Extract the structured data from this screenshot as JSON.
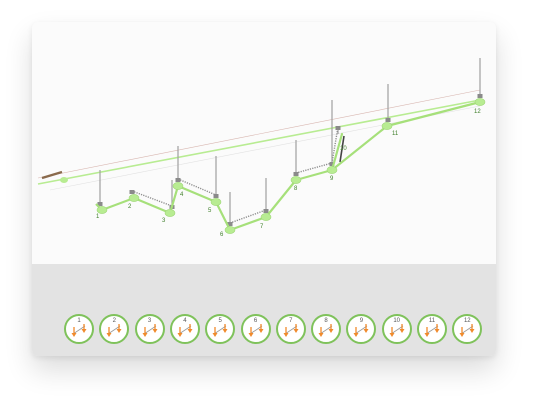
{
  "colors": {
    "line_green": "#a6e07a",
    "node_green": "#b8ec92",
    "ring_green": "#7fc25b",
    "arrow_orange": "#f08a2c",
    "pole_gray": "#a0a0a0",
    "label_green": "#3f7f2a"
  },
  "stations": [
    {
      "label": "1"
    },
    {
      "label": "2"
    },
    {
      "label": "3"
    },
    {
      "label": "4"
    },
    {
      "label": "5"
    },
    {
      "label": "6"
    },
    {
      "label": "7"
    },
    {
      "label": "8"
    },
    {
      "label": "9"
    },
    {
      "label": "10"
    },
    {
      "label": "11"
    },
    {
      "label": "12"
    }
  ],
  "stage_buttons": [
    {
      "label": "1",
      "icon": "stage-1-icon"
    },
    {
      "label": "2",
      "icon": "stage-2-icon"
    },
    {
      "label": "3",
      "icon": "stage-3-icon"
    },
    {
      "label": "4",
      "icon": "stage-4-icon"
    },
    {
      "label": "5",
      "icon": "stage-5-icon"
    },
    {
      "label": "6",
      "icon": "stage-6-icon"
    },
    {
      "label": "7",
      "icon": "stage-7-icon"
    },
    {
      "label": "8",
      "icon": "stage-8-icon"
    },
    {
      "label": "9",
      "icon": "stage-9-icon"
    },
    {
      "label": "10",
      "icon": "stage-10-icon"
    },
    {
      "label": "11",
      "icon": "stage-11-icon"
    },
    {
      "label": "12",
      "icon": "stage-12-icon"
    }
  ]
}
